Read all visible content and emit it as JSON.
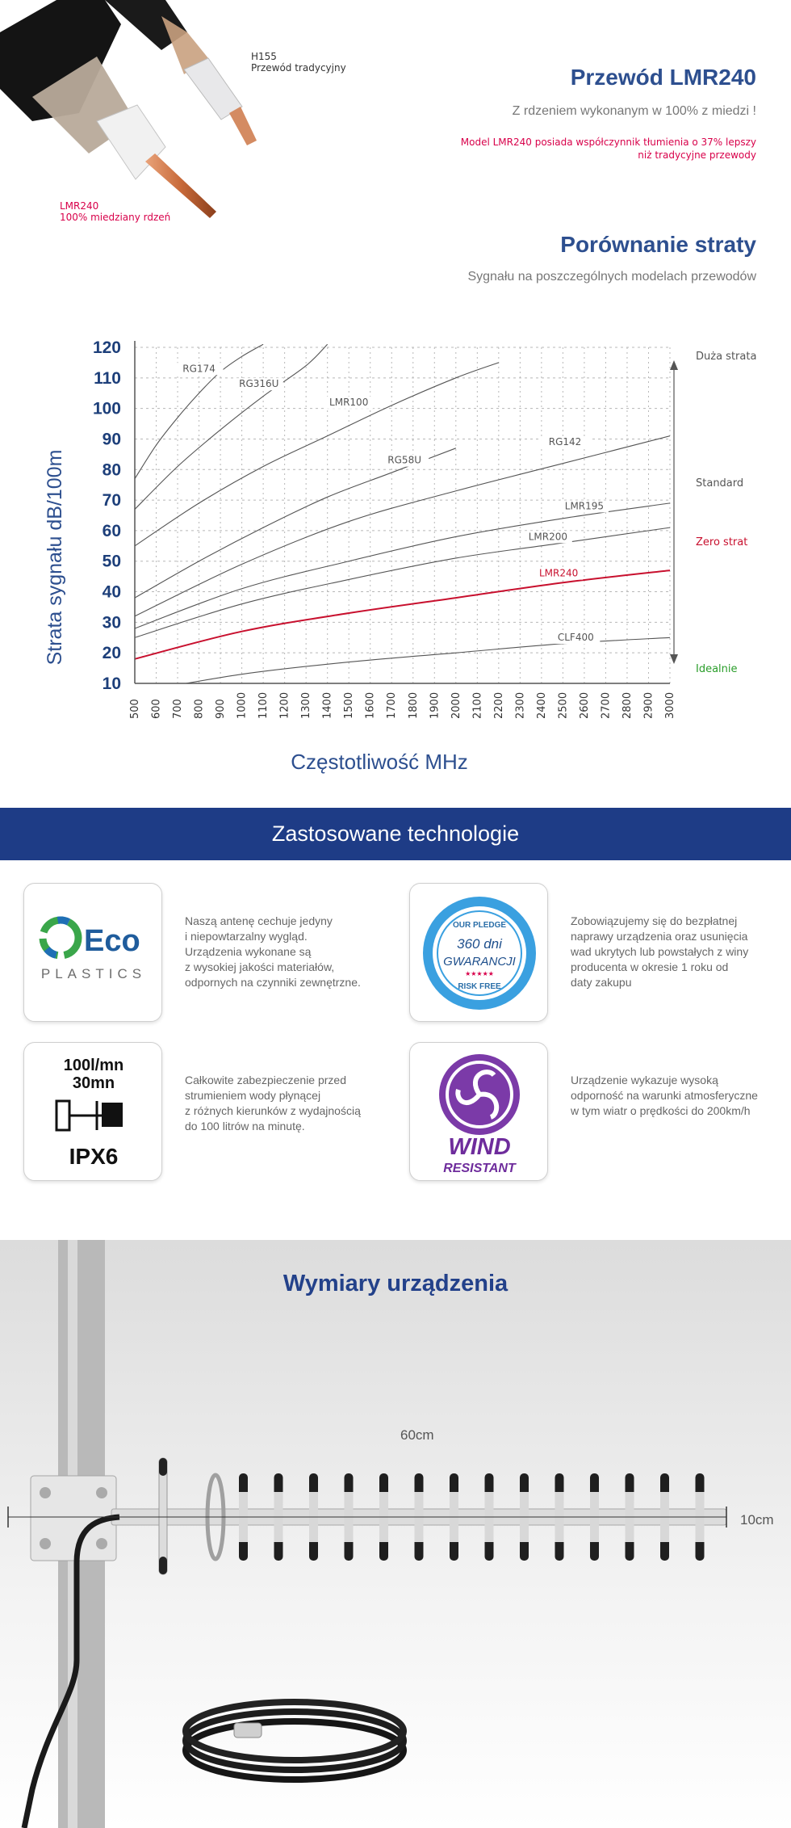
{
  "cables": {
    "h155_caption": [
      "H155",
      "Przewód tradycyjny"
    ],
    "lmr240_caption": [
      "LMR240",
      "100% miedziany rdzeń"
    ]
  },
  "product": {
    "title": "Przewód LMR240",
    "subtitle": "Z rdzeniem wykonanym w 100% z miedzi !",
    "note": [
      "Model LMR240 posiada współczynnik tłumienia o 37% lepszy",
      "niż tradycyjne przewody"
    ]
  },
  "loss": {
    "title": "Porównanie straty",
    "subtitle": "Sygnału na poszczególnych modelach przewodów"
  },
  "chart_data": {
    "type": "line",
    "xlabel": "Częstotliwość MHz",
    "ylabel": "Strata sygnału dB/100m",
    "xlim": [
      500,
      3000
    ],
    "ylim": [
      10,
      120
    ],
    "x_ticks": [
      500,
      600,
      700,
      800,
      900,
      1000,
      1100,
      1200,
      1300,
      1400,
      1500,
      1600,
      1700,
      1800,
      1900,
      2000,
      2100,
      2200,
      2300,
      2400,
      2500,
      2600,
      2700,
      2800,
      2900,
      3000
    ],
    "y_ticks": [
      10,
      20,
      30,
      40,
      50,
      60,
      70,
      80,
      90,
      100,
      110,
      120
    ],
    "grid": true,
    "series": [
      {
        "name": "RG174",
        "color": "#555555",
        "label_at": [
          800,
          112
        ],
        "x": [
          500,
          600,
          700,
          800,
          900,
          1000,
          1100
        ],
        "y": [
          77,
          88,
          97,
          105,
          112,
          117,
          121
        ]
      },
      {
        "name": "RG316U",
        "color": "#555555",
        "label_at": [
          1080,
          107
        ],
        "x": [
          500,
          700,
          900,
          1100,
          1300,
          1400
        ],
        "y": [
          67,
          81,
          93,
          104,
          114,
          121
        ]
      },
      {
        "name": "LMR100",
        "color": "#555555",
        "label_at": [
          1500,
          101
        ],
        "x": [
          500,
          800,
          1100,
          1400,
          1700,
          2000,
          2200
        ],
        "y": [
          55,
          69,
          81,
          91,
          101,
          110,
          115
        ]
      },
      {
        "name": "RG58U",
        "color": "#555555",
        "label_at": [
          1760,
          82
        ],
        "x": [
          500,
          800,
          1100,
          1400,
          1700,
          2000
        ],
        "y": [
          38,
          50,
          61,
          71,
          79,
          87
        ]
      },
      {
        "name": "RG142",
        "color": "#555555",
        "label_at": [
          2510,
          88
        ],
        "x": [
          500,
          1000,
          1500,
          2000,
          2500,
          3000
        ],
        "y": [
          32,
          49,
          63,
          73,
          82,
          91
        ]
      },
      {
        "name": "LMR195",
        "color": "#555555",
        "label_at": [
          2600,
          67
        ],
        "x": [
          500,
          1000,
          1500,
          2000,
          2500,
          3000
        ],
        "y": [
          28,
          41,
          50,
          58,
          64,
          69
        ]
      },
      {
        "name": "LMR200",
        "color": "#555555",
        "label_at": [
          2430,
          57
        ],
        "x": [
          500,
          1000,
          1500,
          2000,
          2500,
          3000
        ],
        "y": [
          25,
          36,
          44,
          51,
          56,
          61
        ]
      },
      {
        "name": "LMR240",
        "color": "#c8102e",
        "label_at": [
          2480,
          45
        ],
        "x": [
          500,
          1000,
          1500,
          2000,
          2500,
          3000
        ],
        "y": [
          18,
          27,
          33,
          38,
          43,
          47
        ]
      },
      {
        "name": "CLF400",
        "color": "#555555",
        "label_at": [
          2560,
          24
        ],
        "x": [
          500,
          1000,
          1500,
          2000,
          2500,
          3000
        ],
        "y": [
          7,
          13,
          17,
          20,
          23,
          25
        ]
      }
    ],
    "annotations": [
      {
        "text": "Duża strata",
        "color": "#555555"
      },
      {
        "text": "Standard",
        "color": "#555555"
      },
      {
        "text": "Zero strat",
        "color": "#c8102e"
      },
      {
        "text": "Idealnie",
        "color": "#2a9d2a"
      }
    ]
  },
  "technologies": {
    "title": "Zastosowane technologie",
    "items": [
      {
        "icon": "eco-plastics-logo",
        "logo_text": [
          "Eco",
          "PLASTICS"
        ],
        "text": [
          "Naszą antenę cechuje jedyny",
          "i niepowtarzalny wygląd.",
          "Urządzenia wykonane są",
          "z wysokiej jakości materiałów,",
          "odpornych na czynniki zewnętrzne."
        ]
      },
      {
        "icon": "warranty-seal-icon",
        "logo_text": [
          "OUR PLEDGE",
          "360 dni",
          "GWARANCJI",
          "RISK FREE"
        ],
        "text": [
          "Zobowiązujemy się do bezpłatnej",
          "naprawy urządzenia oraz usunięcia",
          "wad ukrytych lub powstałych z winy",
          "producenta w okresie 1 roku od",
          "daty zakupu"
        ]
      },
      {
        "icon": "ipx6-icon",
        "logo_text": [
          "100l/mn",
          "30mn",
          "IPX6"
        ],
        "text": [
          "Całkowite zabezpieczenie przed",
          "strumieniem wody płynącej",
          "z różnych kierunków z wydajnością",
          "do 100 litrów na minutę."
        ]
      },
      {
        "icon": "wind-resistant-icon",
        "logo_text": [
          "WIND",
          "RESISTANT"
        ],
        "text": [
          "Urządzenie wykazuje wysoką",
          "odporność na warunki atmosferyczne",
          "w tym wiatr o prędkości do 200km/h"
        ]
      }
    ]
  },
  "dimensions": {
    "title": "Wymiary urządzenia",
    "width": "60cm",
    "height": "10cm"
  },
  "colors": {
    "navy": "#1e3c86",
    "title_blue": "#2d4f8f",
    "accent_red": "#c8102e",
    "ideal_green": "#2a9d2a"
  }
}
